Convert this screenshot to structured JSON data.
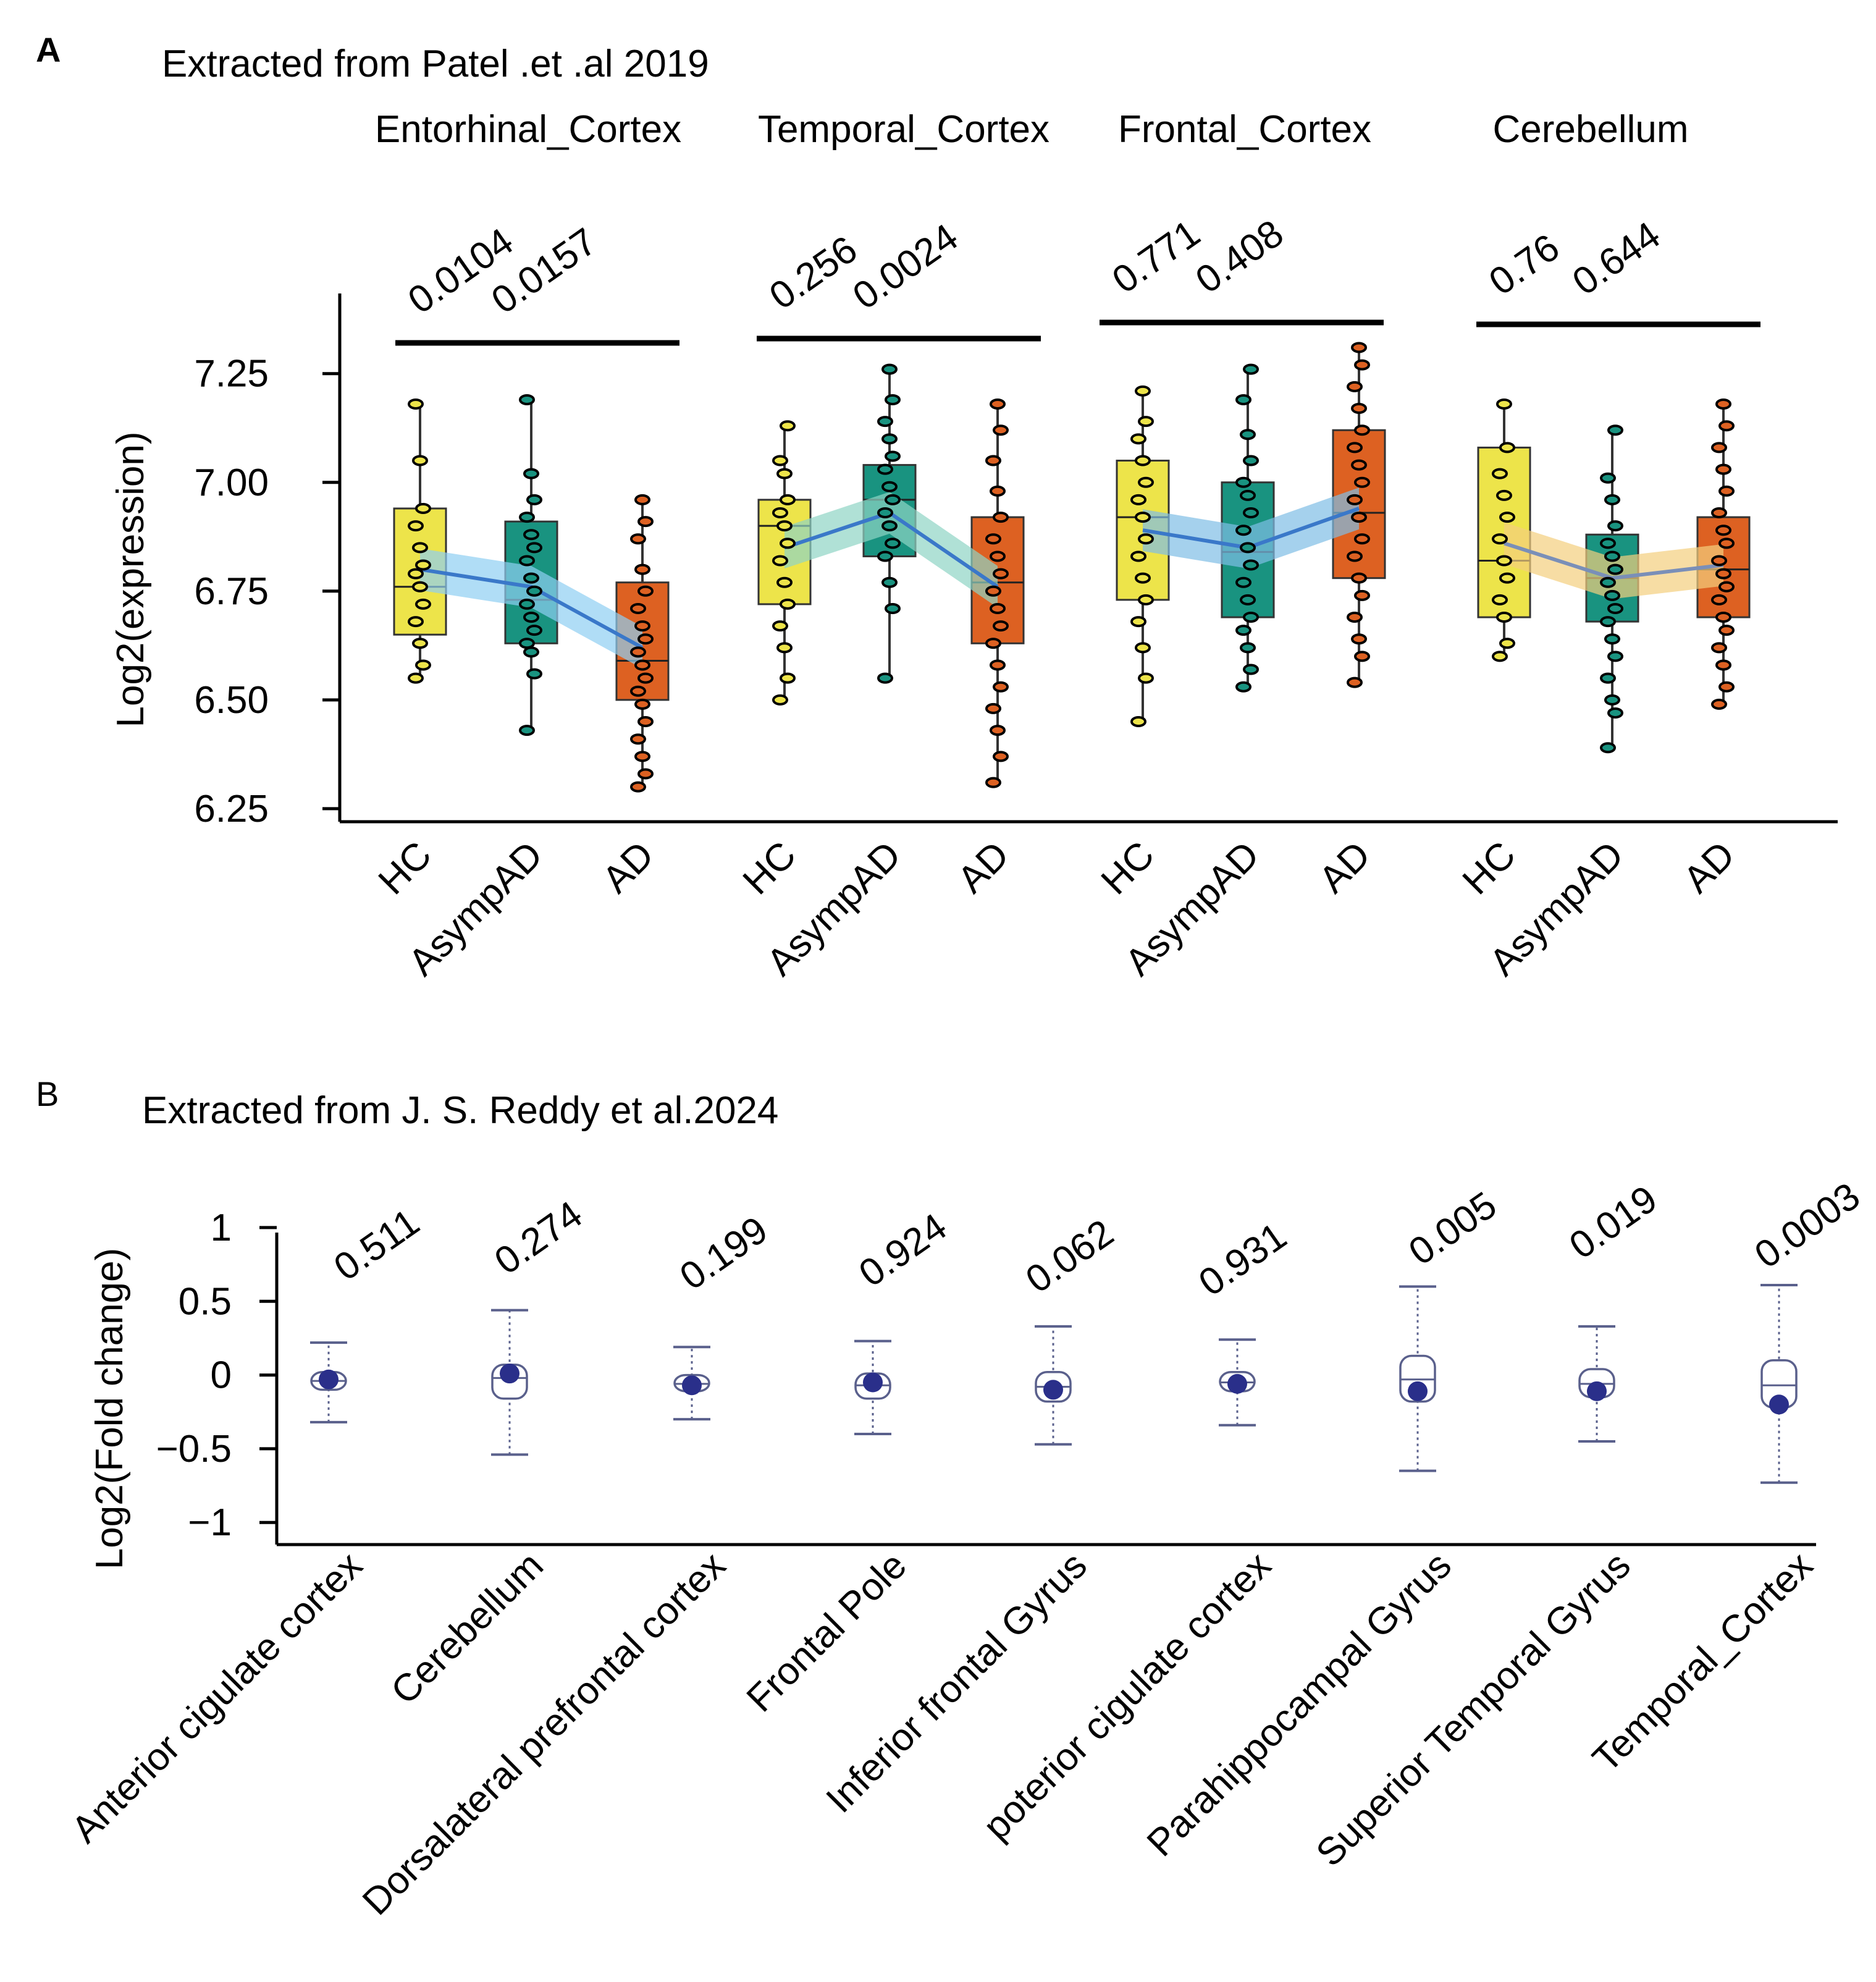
{
  "figure": {
    "panel_a_letter": "A",
    "panel_b_letter": "B"
  },
  "chart_data": [
    {
      "type": "box",
      "panel": "A",
      "title": "Extracted from Patel .et .al 2019",
      "ylabel": "Log2(expression)",
      "ylim": [
        6.22,
        7.42
      ],
      "yticks": [
        "7.25",
        "7.00",
        "6.75",
        "6.50",
        "6.25"
      ],
      "ytick_values": [
        7.25,
        7.0,
        6.75,
        6.5,
        6.25
      ],
      "group_colors": {
        "HC": "#ede44a",
        "AsympAD": "#199380",
        "AD": "#dd6122"
      },
      "band_colors": [
        "#8fcff2",
        "#8fd4c4",
        "#7fbde6",
        "#f4cf7e"
      ],
      "trend_colors": [
        "#3a78c9",
        "#3a78c9",
        "#3a78c9",
        "#7a8fb8"
      ],
      "regions": [
        {
          "name": "Entorhinal_Cortex",
          "pvalues": [
            "0.0104",
            "0.0157"
          ],
          "groups": [
            {
              "label": "HC",
              "min": 6.55,
              "q1": 6.65,
              "median": 6.76,
              "q3": 6.94,
              "max": 7.18,
              "mean": 6.8,
              "points": [
                6.55,
                6.58,
                6.63,
                6.68,
                6.72,
                6.76,
                6.79,
                6.81,
                6.85,
                6.9,
                6.94,
                7.05,
                7.18
              ]
            },
            {
              "label": "AsympAD",
              "min": 6.43,
              "q1": 6.63,
              "median": 6.73,
              "q3": 6.91,
              "max": 7.19,
              "mean": 6.76,
              "points": [
                6.43,
                6.56,
                6.61,
                6.63,
                6.66,
                6.69,
                6.72,
                6.75,
                6.78,
                6.82,
                6.85,
                6.88,
                6.92,
                6.96,
                7.02,
                7.19
              ]
            },
            {
              "label": "AD",
              "min": 6.3,
              "q1": 6.5,
              "median": 6.59,
              "q3": 6.77,
              "max": 6.96,
              "mean": 6.62,
              "points": [
                6.3,
                6.33,
                6.37,
                6.41,
                6.45,
                6.49,
                6.52,
                6.55,
                6.58,
                6.61,
                6.64,
                6.67,
                6.71,
                6.75,
                6.8,
                6.87,
                6.91,
                6.96
              ]
            }
          ]
        },
        {
          "name": "Temporal_Cortex",
          "pvalues": [
            "0.256",
            "0.0024"
          ],
          "groups": [
            {
              "label": "HC",
              "min": 6.5,
              "q1": 6.72,
              "median": 6.9,
              "q3": 6.96,
              "max": 7.13,
              "mean": 6.85,
              "points": [
                6.5,
                6.55,
                6.62,
                6.67,
                6.72,
                6.77,
                6.82,
                6.86,
                6.9,
                6.93,
                6.96,
                7.02,
                7.05,
                7.13
              ]
            },
            {
              "label": "AsympAD",
              "min": 6.55,
              "q1": 6.83,
              "median": 6.96,
              "q3": 7.04,
              "max": 7.26,
              "mean": 6.93,
              "points": [
                6.55,
                6.71,
                6.77,
                6.83,
                6.86,
                6.9,
                6.93,
                6.96,
                6.99,
                7.03,
                7.06,
                7.1,
                7.14,
                7.19,
                7.26
              ]
            },
            {
              "label": "AD",
              "min": 6.31,
              "q1": 6.63,
              "median": 6.77,
              "q3": 6.92,
              "max": 7.18,
              "mean": 6.76,
              "points": [
                6.31,
                6.37,
                6.43,
                6.48,
                6.53,
                6.58,
                6.63,
                6.67,
                6.71,
                6.75,
                6.79,
                6.83,
                6.87,
                6.92,
                6.98,
                7.05,
                7.12,
                7.18
              ]
            }
          ]
        },
        {
          "name": "Frontal_Cortex",
          "pvalues": [
            "0.771",
            "0.408"
          ],
          "groups": [
            {
              "label": "HC",
              "min": 6.45,
              "q1": 6.73,
              "median": 6.92,
              "q3": 7.05,
              "max": 7.21,
              "mean": 6.89,
              "points": [
                6.45,
                6.55,
                6.62,
                6.68,
                6.73,
                6.78,
                6.83,
                6.87,
                6.92,
                6.96,
                7.0,
                7.05,
                7.1,
                7.14,
                7.21
              ]
            },
            {
              "label": "AsympAD",
              "min": 6.53,
              "q1": 6.69,
              "median": 6.84,
              "q3": 7.0,
              "max": 7.26,
              "mean": 6.85,
              "points": [
                6.53,
                6.57,
                6.62,
                6.66,
                6.69,
                6.73,
                6.77,
                6.81,
                6.85,
                6.89,
                6.93,
                6.97,
                7.0,
                7.05,
                7.11,
                7.19,
                7.26
              ]
            },
            {
              "label": "AD",
              "min": 6.54,
              "q1": 6.78,
              "median": 6.93,
              "q3": 7.12,
              "max": 7.31,
              "mean": 6.94,
              "points": [
                6.54,
                6.6,
                6.64,
                6.69,
                6.74,
                6.78,
                6.83,
                6.87,
                6.92,
                6.96,
                7.0,
                7.04,
                7.08,
                7.12,
                7.17,
                7.22,
                7.27,
                7.31
              ]
            }
          ]
        },
        {
          "name": "Cerebellum",
          "pvalues": [
            "0.76",
            "0.644"
          ],
          "groups": [
            {
              "label": "HC",
              "min": 6.6,
              "q1": 6.69,
              "median": 6.82,
              "q3": 7.08,
              "max": 7.18,
              "mean": 6.86,
              "points": [
                6.6,
                6.63,
                6.69,
                6.73,
                6.78,
                6.82,
                6.87,
                6.92,
                6.97,
                7.02,
                7.08,
                7.18
              ]
            },
            {
              "label": "AsympAD",
              "min": 6.39,
              "q1": 6.68,
              "median": 6.78,
              "q3": 6.88,
              "max": 7.12,
              "mean": 6.78,
              "points": [
                6.39,
                6.47,
                6.5,
                6.55,
                6.6,
                6.64,
                6.68,
                6.71,
                6.74,
                6.77,
                6.8,
                6.83,
                6.86,
                6.9,
                6.96,
                7.01,
                7.12
              ]
            },
            {
              "label": "AD",
              "min": 6.49,
              "q1": 6.69,
              "median": 6.8,
              "q3": 6.92,
              "max": 7.18,
              "mean": 6.81,
              "points": [
                6.49,
                6.53,
                6.58,
                6.62,
                6.66,
                6.69,
                6.73,
                6.76,
                6.79,
                6.82,
                6.86,
                6.89,
                6.93,
                6.98,
                7.03,
                7.08,
                7.13,
                7.18
              ]
            }
          ]
        }
      ]
    },
    {
      "type": "box",
      "panel": "B",
      "title": "Extracted from J. S. Reddy et al.2024",
      "ylabel": "Log2(Fold change)",
      "ylim": [
        -1.15,
        1.05
      ],
      "yticks": [
        "1",
        "0.5",
        "0",
        "−0.5",
        "−1"
      ],
      "ytick_values": [
        1,
        0.5,
        0,
        -0.5,
        -1
      ],
      "box_color": "#5a608c",
      "point_color": "#2a2f8a",
      "categories": [
        {
          "label": "Anterior cigulate cortex",
          "pvalue": "0.511",
          "min": -0.32,
          "q1": -0.1,
          "median": -0.04,
          "q3": 0.02,
          "max": 0.22,
          "point": -0.03
        },
        {
          "label": "Cerebellum",
          "pvalue": "0.274",
          "min": -0.54,
          "q1": -0.16,
          "median": -0.02,
          "q3": 0.07,
          "max": 0.44,
          "point": 0.01
        },
        {
          "label": "Dorsalateral prefrontal cortex",
          "pvalue": "0.199",
          "min": -0.3,
          "q1": -0.11,
          "median": -0.06,
          "q3": 0.0,
          "max": 0.19,
          "point": -0.07
        },
        {
          "label": "Frontal Pole",
          "pvalue": "0.924",
          "min": -0.4,
          "q1": -0.16,
          "median": -0.07,
          "q3": 0.01,
          "max": 0.23,
          "point": -0.05
        },
        {
          "label": "Inferior frontal Gyrus",
          "pvalue": "0.062",
          "min": -0.47,
          "q1": -0.18,
          "median": -0.08,
          "q3": 0.02,
          "max": 0.33,
          "point": -0.1
        },
        {
          "label": "poterior cigulate cortex",
          "pvalue": "0.931",
          "min": -0.34,
          "q1": -0.11,
          "median": -0.05,
          "q3": 0.02,
          "max": 0.24,
          "point": -0.06
        },
        {
          "label": "Parahippocampal Gyrus",
          "pvalue": "0.005",
          "min": -0.65,
          "q1": -0.18,
          "median": -0.03,
          "q3": 0.13,
          "max": 0.6,
          "point": -0.11
        },
        {
          "label": "Superior Temporal Gyrus",
          "pvalue": "0.019",
          "min": -0.45,
          "q1": -0.15,
          "median": -0.06,
          "q3": 0.04,
          "max": 0.33,
          "point": -0.11
        },
        {
          "label": "Temporal_Cortex",
          "pvalue": "0.0003",
          "min": -0.73,
          "q1": -0.22,
          "median": -0.07,
          "q3": 0.1,
          "max": 0.61,
          "point": -0.2
        }
      ]
    }
  ]
}
